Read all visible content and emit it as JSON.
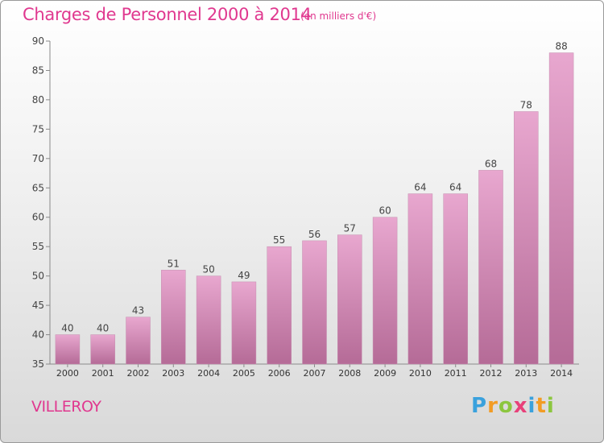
{
  "chart_data": {
    "type": "bar",
    "title": "Charges de Personnel 2000 à 2014",
    "subtitle": "(en milliers d'€)",
    "categories": [
      "2000",
      "2001",
      "2002",
      "2003",
      "2004",
      "2005",
      "2006",
      "2007",
      "2008",
      "2009",
      "2010",
      "2011",
      "2012",
      "2013",
      "2014"
    ],
    "values": [
      40,
      40,
      43,
      51,
      50,
      49,
      55,
      56,
      57,
      60,
      64,
      64,
      68,
      78,
      88
    ],
    "ylim": [
      35,
      90
    ],
    "yticks": [
      35,
      40,
      45,
      50,
      55,
      60,
      65,
      70,
      75,
      80,
      85,
      90
    ],
    "xlabel": "",
    "ylabel": "",
    "grid": false,
    "bar_color": "#dd99c4"
  },
  "commune": "VILLEROY",
  "logo": {
    "letters": [
      "P",
      "r",
      "o",
      "x",
      "i",
      "t",
      "i"
    ],
    "colors": [
      "#3aa1dd",
      "#f29c24",
      "#8cc63f",
      "#e8417a",
      "#3aa1dd",
      "#f29c24",
      "#8cc63f"
    ]
  }
}
